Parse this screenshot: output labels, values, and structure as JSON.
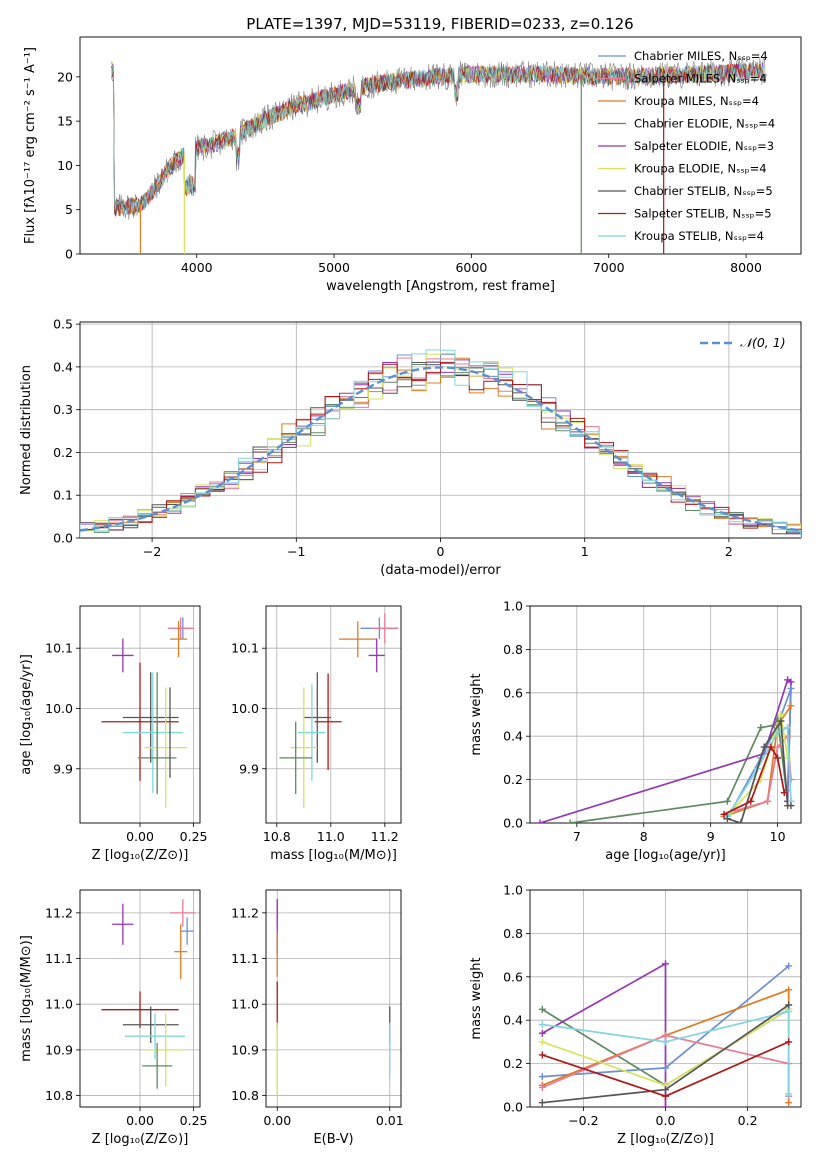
{
  "figure_title": "PLATE=1397, MJD=53119, FIBERID=0233, z=0.126",
  "colors": {
    "chabrier_miles": "#6a8fd8",
    "salpeter_miles": "#e97a97",
    "kroupa_miles": "#e07b22",
    "chabrier_elodie": "#5f8a60",
    "salpeter_elodie": "#9535b8",
    "kroupa_elodie": "#d7e35c",
    "chabrier_stelib": "#555555",
    "salpeter_stelib": "#b01818",
    "kroupa_stelib": "#7fd6dc"
  },
  "chart_data": [
    {
      "id": "spectrum",
      "type": "line",
      "xlabel": "wavelength [Angstrom, rest frame]",
      "ylabel": "Flux [fλ10⁻¹⁷ erg cm⁻² s⁻¹ A⁻¹]",
      "xlim": [
        3150,
        8400
      ],
      "ylim": [
        0,
        24.5
      ],
      "xticks": [
        "4000",
        "5000",
        "6000",
        "7000",
        "8000"
      ],
      "yticks": [
        "0",
        "5",
        "10",
        "15",
        "20"
      ],
      "legend": [
        {
          "label": "Chabrier MILES, Nₛₛₚ=4",
          "color": "#6a8fd8"
        },
        {
          "label": "Salpeter MILES, Nₛₛₚ=4",
          "color": "#e97a97"
        },
        {
          "label": "Kroupa MILES, Nₛₛₚ=4",
          "color": "#e07b22"
        },
        {
          "label": "Chabrier ELODIE, Nₛₛₚ=4",
          "color": "#5f8a60"
        },
        {
          "label": "Salpeter ELODIE, Nₛₛₚ=3",
          "color": "#9535b8"
        },
        {
          "label": "Kroupa ELODIE, Nₛₛₚ=4",
          "color": "#d7e35c"
        },
        {
          "label": "Chabrier STELIB, Nₛₛₚ=5",
          "color": "#555555"
        },
        {
          "label": "Salpeter STELIB, Nₛₛₚ=5",
          "color": "#b01818"
        },
        {
          "label": "Kroupa STELIB, Nₛₛₚ=4",
          "color": "#7fd6dc"
        }
      ],
      "legend_placement": "upper right",
      "continuum": [
        [
          3400,
          5.2
        ],
        [
          3600,
          5.6
        ],
        [
          3700,
          7.5
        ],
        [
          3800,
          9.8
        ],
        [
          3950,
          11.8
        ],
        [
          4100,
          12.2
        ],
        [
          4300,
          13.5
        ],
        [
          4500,
          15.2
        ],
        [
          4700,
          16.6
        ],
        [
          5000,
          18.0
        ],
        [
          5300,
          19.2
        ],
        [
          5600,
          19.8
        ],
        [
          6000,
          20.3
        ],
        [
          6500,
          20.3
        ],
        [
          7000,
          20.0
        ],
        [
          7500,
          20.2
        ],
        [
          8000,
          20.6
        ],
        [
          8150,
          20.7
        ]
      ],
      "drop_lines": [
        3590,
        3910,
        6800,
        7400
      ],
      "grid": false
    },
    {
      "id": "residuals",
      "type": "histogram",
      "xlabel": "(data-model)/error",
      "ylabel": "Normed distribution",
      "xlim": [
        -2.5,
        2.5
      ],
      "ylim": [
        0,
        0.505
      ],
      "xticks": [
        "−2",
        "−1",
        "0",
        "1",
        "2"
      ],
      "yticks": [
        "0.0",
        "0.1",
        "0.2",
        "0.3",
        "0.4",
        "0.5"
      ],
      "bins": 50,
      "reference": "𝒩(0, 1)",
      "legend_placement": "upper right",
      "grid": true
    },
    {
      "id": "age_vs_Z",
      "type": "errorbar",
      "xlabel": "Z [log₁₀(Z/Z⊙)]",
      "ylabel": "age  [log₁₀(age/yr)]",
      "xlim": [
        -0.28,
        0.28
      ],
      "ylim": [
        9.81,
        10.17
      ],
      "xticks": [
        "0.00",
        "0.25"
      ],
      "yticks": [
        "9.9",
        "10.0",
        "10.1"
      ],
      "points": [
        {
          "color": "#6a8fd8",
          "x": 0.2,
          "xe": 0.03,
          "y": 10.133,
          "ye": 0.018
        },
        {
          "color": "#e97a97",
          "x": 0.19,
          "xe": 0.06,
          "y": 10.133,
          "ye": 0.018
        },
        {
          "color": "#e07b22",
          "x": 0.18,
          "xe": 0.04,
          "y": 10.115,
          "ye": 0.03
        },
        {
          "color": "#9535b8",
          "x": -0.08,
          "xe": 0.05,
          "y": 10.088,
          "ye": 0.028
        },
        {
          "color": "#b01818",
          "x": 0.0,
          "xe": 0.18,
          "y": 9.978,
          "ye": 0.098
        },
        {
          "color": "#555555",
          "x": 0.05,
          "xe": 0.13,
          "y": 9.985,
          "ye": 0.075
        },
        {
          "color": "#7fd6dc",
          "x": 0.06,
          "xe": 0.14,
          "y": 9.96,
          "ye": 0.1
        },
        {
          "color": "#d7e35c",
          "x": 0.12,
          "xe": 0.1,
          "y": 9.935,
          "ye": 0.1
        },
        {
          "color": "#5f8a60",
          "x": 0.08,
          "xe": 0.09,
          "y": 9.918,
          "ye": 0.06
        },
        {
          "color": "#555555",
          "x": 0.14,
          "xe": 0.0,
          "y": 9.96,
          "ye": 0.075
        },
        {
          "color": "#5f8a60",
          "x": 0.08,
          "xe": 0.0,
          "y": 9.96,
          "ye": 0.1
        }
      ],
      "grid": true
    },
    {
      "id": "age_vs_mass",
      "type": "errorbar",
      "xlabel": "mass [log₁₀(M/M⊙)]",
      "ylabel": "",
      "xlim": [
        10.76,
        11.26
      ],
      "ylim": [
        9.81,
        10.17
      ],
      "xticks": [
        "10.8",
        "11.0",
        "11.2"
      ],
      "yticks": [
        "9.9",
        "10.0",
        "10.1"
      ],
      "points": [
        {
          "color": "#6a8fd8",
          "x": 11.18,
          "xe": 0.07,
          "y": 10.133,
          "ye": 0.018
        },
        {
          "color": "#e97a97",
          "x": 11.2,
          "xe": 0.05,
          "y": 10.133,
          "ye": 0.025
        },
        {
          "color": "#e07b22",
          "x": 11.1,
          "xe": 0.07,
          "y": 10.115,
          "ye": 0.03
        },
        {
          "color": "#9535b8",
          "x": 11.17,
          "xe": 0.03,
          "y": 10.088,
          "ye": 0.028
        },
        {
          "color": "#b01818",
          "x": 10.99,
          "xe": 0.05,
          "y": 9.978,
          "ye": 0.08
        },
        {
          "color": "#555555",
          "x": 10.95,
          "xe": 0.05,
          "y": 9.985,
          "ye": 0.075
        },
        {
          "color": "#7fd6dc",
          "x": 10.93,
          "xe": 0.05,
          "y": 9.96,
          "ye": 0.08
        },
        {
          "color": "#d7e35c",
          "x": 10.9,
          "xe": 0.05,
          "y": 9.935,
          "ye": 0.1
        },
        {
          "color": "#5f8a60",
          "x": 10.87,
          "xe": 0.06,
          "y": 9.918,
          "ye": 0.06
        }
      ],
      "grid": true
    },
    {
      "id": "mass_weight_vs_age",
      "type": "line",
      "xlabel": "age  [log₁₀(age/yr)]",
      "ylabel": "mass weight",
      "xlim": [
        6.3,
        10.35
      ],
      "ylim": [
        0,
        1.0
      ],
      "xticks": [
        "7",
        "8",
        "9",
        "10"
      ],
      "yticks": [
        "0.0",
        "0.2",
        "0.4",
        "0.6",
        "0.8",
        "1.0"
      ],
      "series": [
        {
          "color": "#5f8a60",
          "x": [
            6.9,
            9.25,
            9.75,
            9.95,
            10.0,
            10.15
          ],
          "y": [
            0.0,
            0.1,
            0.44,
            0.45,
            0.48,
            0.1
          ]
        },
        {
          "color": "#9535b8",
          "x": [
            6.45,
            9.8,
            10.15,
            10.2,
            10.15
          ],
          "y": [
            0.0,
            0.32,
            0.66,
            0.65,
            0.1
          ]
        },
        {
          "color": "#6a8fd8",
          "x": [
            9.3,
            9.75,
            10.0,
            10.2,
            10.15
          ],
          "y": [
            0.05,
            0.3,
            0.45,
            0.62,
            0.15
          ]
        },
        {
          "color": "#e07b22",
          "x": [
            9.2,
            9.85,
            10.0,
            10.2
          ],
          "y": [
            0.03,
            0.1,
            0.45,
            0.54
          ]
        },
        {
          "color": "#e97a97",
          "x": [
            9.3,
            9.85,
            10.0,
            10.15,
            10.2
          ],
          "y": [
            0.05,
            0.1,
            0.35,
            0.4,
            0.2
          ]
        },
        {
          "color": "#d7e35c",
          "x": [
            9.3,
            9.75,
            9.95,
            10.05,
            10.15
          ],
          "y": [
            0.05,
            0.2,
            0.4,
            0.5,
            0.3
          ]
        },
        {
          "color": "#7fd6dc",
          "x": [
            9.25,
            9.7,
            10.0,
            10.15,
            10.2
          ],
          "y": [
            0.03,
            0.25,
            0.42,
            0.44,
            0.1
          ]
        },
        {
          "color": "#555555",
          "x": [
            9.25,
            9.45,
            9.8,
            10.05,
            10.15,
            10.2
          ],
          "y": [
            0.02,
            0.0,
            0.35,
            0.47,
            0.08,
            0.08
          ]
        },
        {
          "color": "#b01818",
          "x": [
            9.2,
            9.6,
            9.9,
            10.0,
            10.1
          ],
          "y": [
            0.04,
            0.1,
            0.35,
            0.3,
            0.14
          ]
        }
      ],
      "grid": true
    },
    {
      "id": "mass_vs_Z",
      "type": "errorbar",
      "xlabel": "Z [log₁₀(Z/Z⊙)]",
      "ylabel": "mass [log₁₀(M/M⊙)]",
      "xlim": [
        -0.28,
        0.28
      ],
      "ylim": [
        10.775,
        11.25
      ],
      "xticks": [
        "0.00",
        "0.25"
      ],
      "yticks": [
        "10.8",
        "10.9",
        "11.0",
        "11.1",
        "11.2"
      ],
      "points": [
        {
          "color": "#e97a97",
          "x": 0.2,
          "xe": 0.06,
          "y": 11.2,
          "ye": 0.03
        },
        {
          "color": "#6a8fd8",
          "x": 0.22,
          "xe": 0.03,
          "y": 11.16,
          "ye": 0.03
        },
        {
          "color": "#9535b8",
          "x": -0.08,
          "xe": 0.05,
          "y": 11.175,
          "ye": 0.045
        },
        {
          "color": "#e07b22",
          "x": 0.19,
          "xe": 0.03,
          "y": 11.115,
          "ye": 0.06
        },
        {
          "color": "#b01818",
          "x": 0.0,
          "xe": 0.18,
          "y": 10.988,
          "ye": 0.04
        },
        {
          "color": "#555555",
          "x": 0.05,
          "xe": 0.13,
          "y": 10.955,
          "ye": 0.04
        },
        {
          "color": "#7fd6dc",
          "x": 0.07,
          "xe": 0.14,
          "y": 10.93,
          "ye": 0.05
        },
        {
          "color": "#d7e35c",
          "x": 0.12,
          "xe": 0.08,
          "y": 10.9,
          "ye": 0.08
        },
        {
          "color": "#5f8a60",
          "x": 0.08,
          "xe": 0.07,
          "y": 10.865,
          "ye": 0.05
        }
      ],
      "grid": true
    },
    {
      "id": "mass_vs_ebv",
      "type": "errorbar",
      "xlabel": "E(B-V)",
      "ylabel": "",
      "xlim": [
        -0.001,
        0.011
      ],
      "ylim": [
        10.775,
        11.25
      ],
      "xticks": [
        "0.00",
        "0.01"
      ],
      "yticks": [
        "10.8",
        "10.9",
        "11.0",
        "11.1",
        "11.2"
      ],
      "points": [
        {
          "color": "#e97a97",
          "x": 0.0,
          "xe": 0.0,
          "y": 11.2,
          "ye": 0.03
        },
        {
          "color": "#9535b8",
          "x": 0.0,
          "xe": 0.0,
          "y": 11.17,
          "ye": 0.06
        },
        {
          "color": "#e07b22",
          "x": 0.0,
          "xe": 0.0,
          "y": 11.11,
          "ye": 0.05
        },
        {
          "color": "#b01818",
          "x": 0.0,
          "xe": 0.0,
          "y": 11.0,
          "ye": 0.05
        },
        {
          "color": "#d7e35c",
          "x": 0.0,
          "xe": 0.0,
          "y": 10.88,
          "ye": 0.08
        },
        {
          "color": "#555555",
          "x": 0.01,
          "xe": 0.0,
          "y": 10.955,
          "ye": 0.04
        },
        {
          "color": "#7fd6dc",
          "x": 0.01,
          "xe": 0.0,
          "y": 10.9,
          "ye": 0.06
        }
      ],
      "grid": true
    },
    {
      "id": "mass_weight_vs_Z",
      "type": "line",
      "xlabel": "Z [log₁₀(Z/Z⊙)]",
      "ylabel": "mass weight",
      "xlim": [
        -0.33,
        0.33
      ],
      "ylim": [
        0,
        1.0
      ],
      "xticks": [
        "−0.2",
        "0.0",
        "0.2"
      ],
      "yticks": [
        "0.0",
        "0.2",
        "0.4",
        "0.6",
        "0.8",
        "1.0"
      ],
      "series": [
        {
          "color": "#5f8a60",
          "x": [
            -0.3,
            0.0,
            0.3
          ],
          "y": [
            0.45,
            0.1,
            0.45
          ]
        },
        {
          "color": "#9535b8",
          "x": [
            -0.3,
            0.0,
            0.0
          ],
          "y": [
            0.34,
            0.66,
            0.0
          ]
        },
        {
          "color": "#6a8fd8",
          "x": [
            -0.3,
            0.0,
            0.3
          ],
          "y": [
            0.14,
            0.18,
            0.65
          ]
        },
        {
          "color": "#e07b22",
          "x": [
            -0.3,
            0.0,
            0.3,
            0.3
          ],
          "y": [
            0.1,
            0.33,
            0.54,
            0.02
          ]
        },
        {
          "color": "#e97a97",
          "x": [
            -0.3,
            0.0,
            0.3,
            0.3
          ],
          "y": [
            0.09,
            0.33,
            0.2,
            0.05
          ]
        },
        {
          "color": "#d7e35c",
          "x": [
            -0.3,
            0.0,
            0.3
          ],
          "y": [
            0.3,
            0.1,
            0.45
          ]
        },
        {
          "color": "#7fd6dc",
          "x": [
            -0.3,
            0.0,
            0.3,
            0.3
          ],
          "y": [
            0.38,
            0.3,
            0.44,
            0.06
          ]
        },
        {
          "color": "#555555",
          "x": [
            -0.3,
            0.0,
            0.3
          ],
          "y": [
            0.02,
            0.08,
            0.47
          ]
        },
        {
          "color": "#b01818",
          "x": [
            -0.3,
            0.0,
            0.3
          ],
          "y": [
            0.24,
            0.05,
            0.3
          ]
        }
      ],
      "grid": true
    }
  ]
}
